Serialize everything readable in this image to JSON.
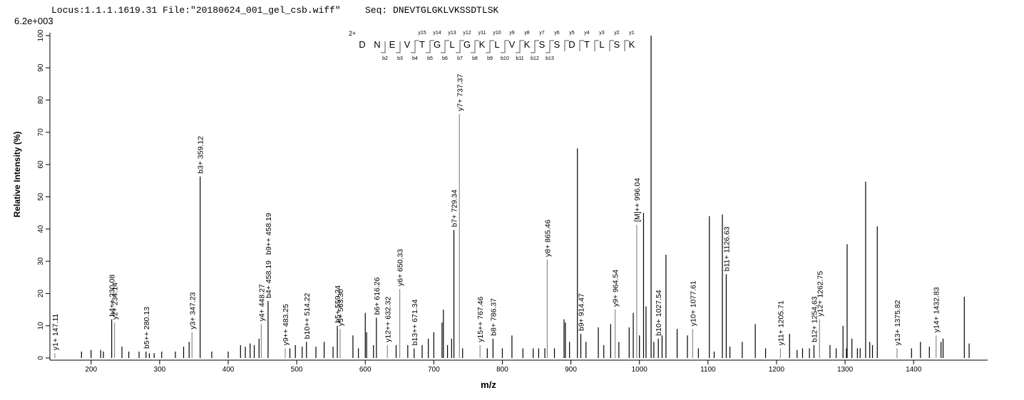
{
  "chart_data": {
    "type": "spectrum",
    "locus": "Locus:1.1.1.1619.31 File:\"20180624_001_gel_csb.wiff\"",
    "seq": "Seq: DNEVTGLGKLVKSSDTLSK",
    "scale_label": "6.2e+003",
    "xlabel": "m/z",
    "ylabel": "Relative  Intensity (%)",
    "xlim": [
      142,
      1508
    ],
    "xticks": [
      200,
      300,
      400,
      500,
      600,
      700,
      800,
      900,
      1000,
      1100,
      1200,
      1300,
      1400
    ],
    "ylim": [
      0,
      100
    ],
    "yticks": [
      0,
      10,
      20,
      30,
      40,
      50,
      60,
      70,
      80,
      90,
      100
    ],
    "sequence_map": {
      "charge": "2+",
      "residues": [
        "D",
        "N",
        "E",
        "V",
        "T",
        "G",
        "L",
        "G",
        "K",
        "L",
        "V",
        "K",
        "S",
        "S",
        "D",
        "T",
        "L",
        "S",
        "K"
      ],
      "y_ions": [
        "y15",
        "y14",
        "y13",
        "y12",
        "y11",
        "y10",
        "y9",
        "y8",
        "y7",
        "y6",
        "y5",
        "y4",
        "y3",
        "y2",
        "y1"
      ],
      "b_ions": [
        "b2",
        "b3",
        "b4",
        "b5",
        "b6",
        "b7",
        "b8",
        "b9",
        "b10",
        "b11",
        "b12",
        "b13"
      ]
    },
    "series": [
      {
        "color": "#000000",
        "x": [
          186,
          200,
          214,
          218,
          245,
          255,
          270,
          285,
          292,
          303,
          323,
          335,
          343,
          376,
          400,
          418,
          425,
          432,
          438,
          445,
          490,
          498,
          508,
          528,
          540,
          553,
          582,
          590,
          600,
          602,
          612,
          645,
          662,
          683,
          692,
          700,
          712,
          714,
          720,
          726,
          742,
          778,
          800,
          814,
          830,
          845,
          853,
          862,
          876,
          890,
          892,
          898,
          909.5,
          922,
          940,
          948,
          958,
          970,
          985,
          991,
          1000,
          1006,
          1009.6,
          1017,
          1021,
          1033,
          1038.7,
          1055,
          1070,
          1086,
          1102,
          1109,
          1121,
          1132,
          1150,
          1169,
          1184,
          1219,
          1230,
          1238,
          1248,
          1278,
          1287,
          1297,
          1302,
          1303,
          1310,
          1318,
          1322,
          1330,
          1336,
          1340,
          1347,
          1397,
          1410,
          1423,
          1440,
          1443,
          1474,
          1481
        ],
        "values": [
          2,
          2.5,
          2.5,
          2,
          3.5,
          2,
          2,
          1.5,
          1.5,
          2,
          2,
          3.5,
          5,
          2,
          2,
          4,
          3.5,
          4.5,
          4,
          6,
          3,
          4,
          3.5,
          3.5,
          5,
          3.5,
          7,
          3,
          14,
          8,
          4,
          4,
          4,
          4,
          6,
          8,
          11,
          15,
          4,
          6,
          3,
          3,
          3,
          7,
          3,
          3,
          3,
          3,
          3,
          12,
          11,
          5,
          65,
          5,
          9.5,
          4,
          10.5,
          5,
          9.5,
          14,
          7,
          45,
          16,
          100,
          5,
          7,
          32,
          9,
          7,
          3,
          44,
          2,
          44.5,
          3.5,
          5,
          10.5,
          3,
          7.5,
          2.5,
          3,
          3,
          4,
          3,
          10,
          3,
          35.3,
          6,
          3,
          3,
          54.7,
          5,
          4,
          40.8,
          3,
          5,
          3.5,
          5,
          6,
          19,
          4.5
        ]
      },
      {
        "color": "#000000",
        "x": [
          230.08,
          280.13,
          359.12,
          458.19,
          514.22,
          559.24,
          616.26,
          671.34,
          729.34,
          786.37,
          914.47,
          1027.54,
          1126.63,
          1254.63
        ],
        "values": [
          12,
          2,
          56.3,
          17.7,
          5,
          10,
          12.5,
          3,
          39.7,
          6,
          7.5,
          6,
          26,
          4
        ],
        "point_labels": [
          "b4++ 230.08",
          "b5++ 280.13",
          "b3+ 359.12",
          [
            "b4+ 458.19",
            "b9++ 458.19"
          ],
          "b10++ 514.22",
          "b5+ 559.24",
          "b6+ 616.26",
          "b13++ 671.34",
          "b7+ 729.34",
          "b8+ 786.37",
          "b9+ 914.47",
          "b10+ 1027.54",
          "b11+ 1126.63",
          "b12+ 1254.63"
        ]
      },
      {
        "color": "#8c8c8c",
        "x": [
          147.11,
          234.14,
          347.23,
          448.27,
          483.25,
          563.3,
          632.32,
          650.33,
          737.37,
          767.46,
          865.46,
          964.54,
          996.04,
          1077.61,
          1205.71,
          1262.75,
          1375.82,
          1432.83
        ],
        "values": [
          1.5,
          11,
          8,
          10.5,
          3,
          9,
          4,
          21.4,
          75.7,
          4,
          30.5,
          15,
          41.3,
          9,
          3,
          12,
          3,
          7
        ],
        "point_labels": [
          "y1+ 147.11",
          "y2+ 234.14",
          "y3+ 347.23",
          "y4+ 448.27",
          "y9++ 483.25",
          "y5+ 563.30",
          "y12++ 632.32",
          "y6+ 650.33",
          "y7+ 737.37",
          "y15++ 767.46",
          "y8+ 865.46",
          "y9+ 964.54",
          "[M]++ 996.04",
          "y10+ 1077.61",
          "y11+ 1205.71",
          "y12+ 1262.75",
          "y13+ 1375.82",
          "y14+ 1432.83"
        ]
      }
    ]
  }
}
